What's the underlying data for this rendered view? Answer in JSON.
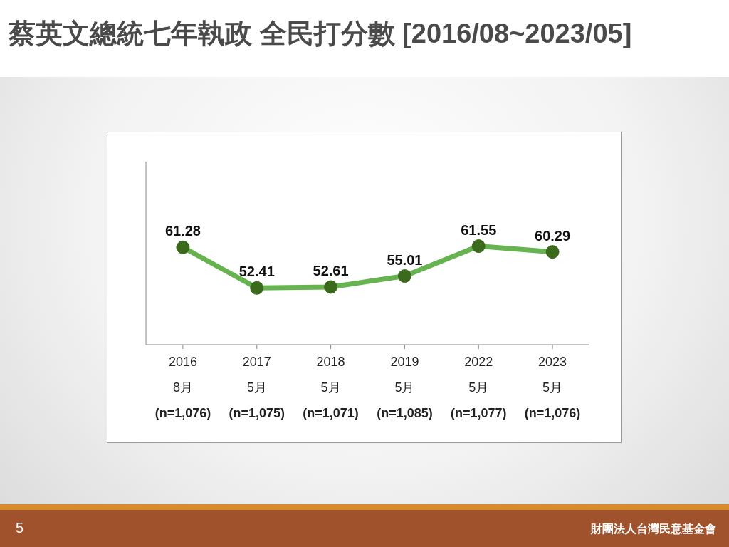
{
  "chart_data": {
    "type": "line",
    "title": "蔡英文總統七年執政 全民打分數 [2016/08~2023/05]",
    "categories": [
      "2016\n8月\n(n=1,076)",
      "2017\n5月\n(n=1,075)",
      "2018\n5月\n(n=1,071)",
      "2019\n5月\n(n=1,085)",
      "2022\n5月\n(n=1,077)",
      "2023\n5月\n(n=1,076)"
    ],
    "series": [
      {
        "color": "#66b350",
        "values": [
          61.28,
          52.41,
          52.61,
          55.01,
          61.55,
          60.29
        ]
      }
    ],
    "ylim": [
      40,
      80
    ],
    "tick_labels": "x",
    "marker": "circle",
    "line_style": "solid",
    "data_labels": true,
    "legend": false,
    "annotations": [
      "5",
      "財團法人台灣民意基金會"
    ]
  }
}
